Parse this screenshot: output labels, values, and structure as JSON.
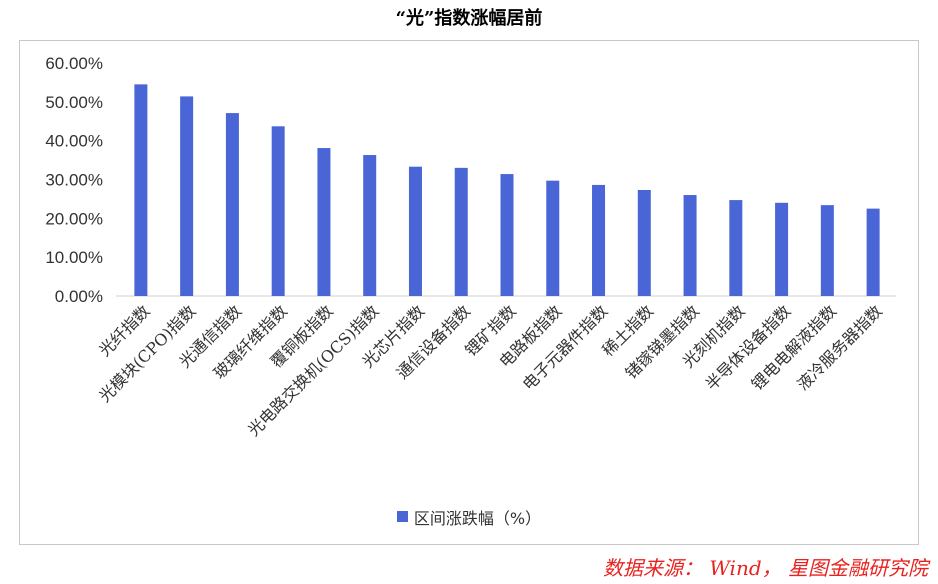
{
  "chart_data": {
    "type": "bar",
    "title": "“光”指数涨幅居前",
    "categories": [
      "光纤指数",
      "光模块(CPO)指数",
      "光通信指数",
      "玻璃纤维指数",
      "覆铜板指数",
      "光电路交换机(OCS)指数",
      "光芯片指数",
      "通信设备指数",
      "锂矿指数",
      "电路板指数",
      "电子元器件指数",
      "稀土指数",
      "锗镓锑墨指数",
      "光刻机指数",
      "半导体设备指数",
      "锂电电解液指数",
      "液冷服务器指数"
    ],
    "series": [
      {
        "name": "区间涨跌幅（%）",
        "values": [
          0.545,
          0.514,
          0.471,
          0.437,
          0.381,
          0.363,
          0.333,
          0.33,
          0.314,
          0.297,
          0.286,
          0.273,
          0.26,
          0.247,
          0.24,
          0.234,
          0.225
        ]
      }
    ],
    "ylim": [
      0,
      0.6
    ],
    "y_ticks": [
      "0.00%",
      "10.00%",
      "20.00%",
      "30.00%",
      "40.00%",
      "50.00%",
      "60.00%"
    ],
    "grid": false,
    "legend_position": "bottom",
    "bar_color": "#4a66d6"
  },
  "legend_label": "区间涨跌幅（%）",
  "source_text": "数据来源： Wind， 星图金融研究院"
}
